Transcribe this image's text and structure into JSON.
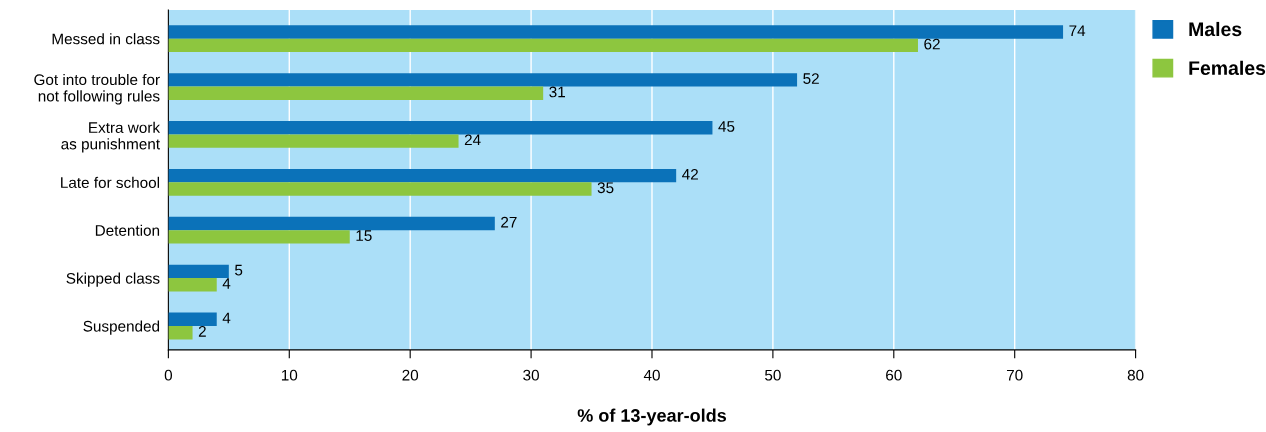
{
  "chart_data": {
    "type": "bar",
    "orientation": "horizontal",
    "categories": [
      "Messed in class",
      "Got into trouble for\nnot following rules",
      "Extra work\nas punishment",
      "Late for school",
      "Detention",
      "Skipped class",
      "Suspended"
    ],
    "series": [
      {
        "name": "Males",
        "color": "#0b72b9",
        "values": [
          74,
          52,
          45,
          42,
          27,
          5,
          4
        ]
      },
      {
        "name": "Females",
        "color": "#8dc63f",
        "values": [
          62,
          31,
          24,
          35,
          15,
          4,
          2
        ]
      }
    ],
    "xlabel": "% of 13-year-olds",
    "xlim": [
      0,
      80
    ],
    "xticks": [
      0,
      10,
      20,
      30,
      40,
      50,
      60,
      70,
      80
    ],
    "grid": "x",
    "legend": "top right",
    "data_labels": true
  }
}
